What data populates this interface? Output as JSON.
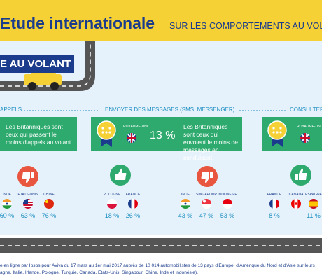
{
  "header": {
    "title": "Etude internationale",
    "subtitle": "SUR LES COMPORTEMENTS AU VOLA"
  },
  "banner": "E AU VOLANT",
  "sections": [
    {
      "heading": "APPELS",
      "box": {
        "text": "Les Britanniques sont ceux qui passent le moins d'appels au volant."
      },
      "countries": [
        {
          "name": "INDE",
          "percent": "60 %"
        },
        {
          "name": "ETATS-UNIS",
          "percent": "63 %"
        },
        {
          "name": "CHINE",
          "percent": "76 %"
        }
      ]
    },
    {
      "heading": "ENVOYER DES MESSAGES (SMS, MESSENGER)",
      "box": {
        "country": "ROYAUME-UNI",
        "percent": "13 %",
        "text": "Les Britanniques sont ceux qui envoient le moins de messages en conduisant."
      },
      "countries": [
        {
          "name": "POLOGNE",
          "percent": "18 %"
        },
        {
          "name": "FRANCE",
          "percent": "26 %"
        },
        {
          "name": "INDE",
          "percent": "43 %"
        },
        {
          "name": "SINGAPOUR",
          "percent": "47 %"
        },
        {
          "name": "INDONESIE",
          "percent": "53 %"
        }
      ]
    },
    {
      "heading": "CONSULTER",
      "box": {
        "country": "ROYAUME-UNI"
      },
      "countries": [
        {
          "name": "FRANCE",
          "percent": "8 %"
        },
        {
          "name": "CANADA"
        },
        {
          "name": "ESPAGNE",
          "percent": "11 %"
        }
      ]
    }
  ],
  "footer": [
    "e en ligne par Ipsos pour Aviva du 17 mars au 1er mai 2017 auprès de 10 014 automobilistes de 13 pays d'Europe, d'Amérique du Nord et d'Asie sur leurs",
    "agne, Italie, Irlande, Pologne, Turquie, Canada, Etats-Unis, Singapour, Chine, Inde et Indonésie)."
  ]
}
